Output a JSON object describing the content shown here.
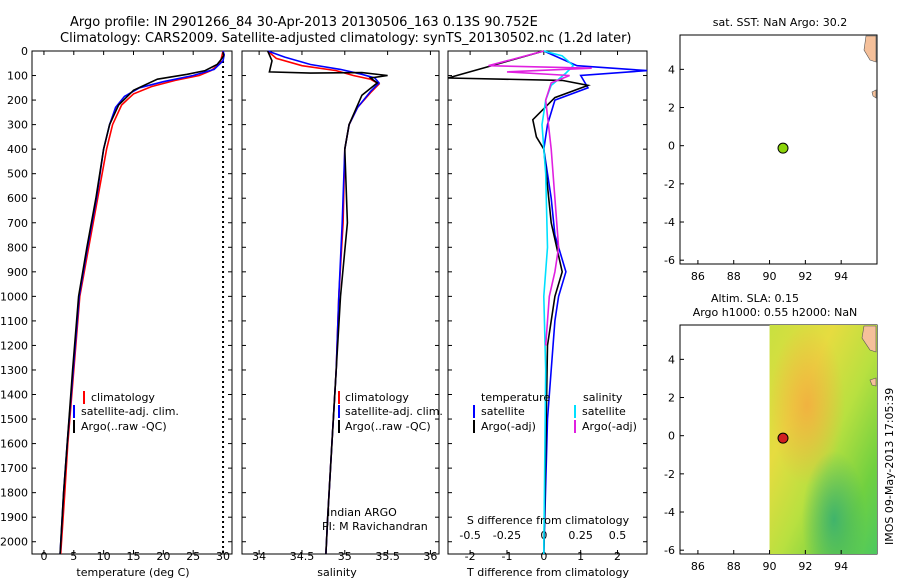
{
  "header": {
    "line1": "Argo profile: IN 2901266_84 30-Apr-2013 20130506_163 0.13S 90.752E",
    "line2": "Climatology: CARS2009. Satellite-adjusted climatology: synTS_20130502.nc (1.2d later)"
  },
  "colors": {
    "climatology": "#ff0000",
    "satellite": "#0000ff",
    "argo": "#000000",
    "sat_salinity": "#00e0ff",
    "argo_salinity": "#e020e0",
    "land": "#f5c09a",
    "point_sst": "#8bd40a",
    "point_sla": "#d02020"
  },
  "chart_data": [
    {
      "id": "temperature",
      "type": "line",
      "xlabel": "temperature (deg C)",
      "ylabel": "depth",
      "xlim": [
        -2,
        31.5
      ],
      "ylim": [
        2050,
        0
      ],
      "xticks": [
        "0",
        "5",
        "10",
        "15",
        "20",
        "25",
        "30"
      ],
      "xtick_values": [
        0,
        5,
        10,
        15,
        20,
        25,
        30
      ],
      "yticks": [
        "0",
        "100",
        "200",
        "300",
        "400",
        "500",
        "600",
        "700",
        "800",
        "900",
        "1000",
        "1100",
        "1200",
        "1300",
        "1400",
        "1500",
        "1600",
        "1700",
        "1800",
        "1900",
        "2000"
      ],
      "ytick_values": [
        0,
        100,
        200,
        300,
        400,
        500,
        600,
        700,
        800,
        900,
        1000,
        1100,
        1200,
        1300,
        1400,
        1500,
        1600,
        1700,
        1800,
        1900,
        2000
      ],
      "reference_line_x": 30,
      "legend": [
        "climatology",
        "satellite-adj. clim.",
        "Argo(..raw -QC)"
      ],
      "series": [
        {
          "name": "climatology",
          "x": [
            30,
            29.8,
            29.5,
            28,
            26,
            22,
            18,
            15,
            13,
            11.5,
            10.5,
            9,
            7.5,
            6,
            5,
            4,
            3.5,
            2.8
          ],
          "y": [
            0,
            20,
            50,
            80,
            100,
            120,
            145,
            175,
            220,
            300,
            400,
            600,
            800,
            1000,
            1300,
            1600,
            1800,
            2050
          ]
        },
        {
          "name": "satellite-adj. clim.",
          "x": [
            30,
            30.2,
            30,
            28.5,
            25,
            20,
            16,
            13.5,
            12,
            11,
            10,
            8.8,
            7.3,
            5.9,
            4.9,
            3.9,
            3.3,
            2.7
          ],
          "y": [
            0,
            15,
            40,
            75,
            100,
            125,
            150,
            185,
            230,
            300,
            400,
            600,
            800,
            1000,
            1300,
            1600,
            1800,
            2050
          ]
        },
        {
          "name": "Argo(..raw -QC)",
          "x": [
            30,
            30.1,
            29.5,
            29,
            27,
            24,
            19,
            15,
            12.5,
            11,
            10,
            8.7,
            7.2,
            5.8,
            4.8,
            3.9,
            3.3,
            2.7
          ],
          "y": [
            5,
            20,
            40,
            55,
            80,
            95,
            115,
            160,
            220,
            300,
            400,
            600,
            800,
            1000,
            1300,
            1600,
            1800,
            2050
          ]
        }
      ]
    },
    {
      "id": "salinity",
      "type": "line",
      "xlabel": "salinity",
      "xlim": [
        33.8,
        36.1
      ],
      "ylim": [
        2050,
        0
      ],
      "xticks": [
        "34",
        "34.5",
        "35",
        "35.5",
        "36"
      ],
      "xtick_values": [
        34,
        34.5,
        35,
        35.5,
        36
      ],
      "legend": [
        "climatology",
        "satellite-adj. clim.",
        "Argo(..raw -QC)"
      ],
      "annotation_lines": [
        "Indian ARGO",
        "PI: M Ravichandran"
      ],
      "series": [
        {
          "name": "climatology",
          "x": [
            34.1,
            34.2,
            34.5,
            34.9,
            35.1,
            35.3,
            35.4,
            35.3,
            35.15,
            35.05,
            35.0,
            34.98,
            34.93,
            34.9,
            34.85,
            34.8,
            34.78
          ],
          "y": [
            0,
            30,
            60,
            80,
            100,
            115,
            135,
            170,
            230,
            300,
            400,
            700,
            1000,
            1300,
            1600,
            1900,
            2050
          ]
        },
        {
          "name": "satellite-adj. clim.",
          "x": [
            34.1,
            34.3,
            34.6,
            34.95,
            35.2,
            35.35,
            35.4,
            35.3,
            35.15,
            35.05,
            35.0,
            34.97,
            34.93,
            34.9,
            34.85,
            34.8,
            34.78
          ],
          "y": [
            0,
            25,
            55,
            75,
            95,
            110,
            130,
            165,
            230,
            300,
            400,
            700,
            1000,
            1300,
            1600,
            1900,
            2050
          ]
        },
        {
          "name": "Argo(..raw -QC)",
          "x": [
            34.1,
            34.15,
            34.12,
            34.6,
            35.2,
            35.5,
            35.3,
            35.38,
            35.2,
            35.05,
            35.0,
            35.03,
            34.95,
            34.9,
            34.85,
            34.8,
            34.78
          ],
          "y": [
            0,
            40,
            85,
            90,
            88,
            100,
            110,
            130,
            180,
            300,
            400,
            700,
            1000,
            1300,
            1600,
            1900,
            2050
          ]
        }
      ]
    },
    {
      "id": "difference",
      "type": "line",
      "xlabel": "T difference from climatology",
      "x2label": "S difference from climatology",
      "xlim": [
        -2.6,
        2.8
      ],
      "ylim": [
        2050,
        0
      ],
      "xticks": [
        "-2",
        "-1",
        "0",
        "1",
        "2"
      ],
      "xtick_values": [
        -2,
        -1,
        0,
        1,
        2
      ],
      "x2ticks": [
        "-0.5",
        "-0.25",
        "0",
        "0.25",
        "0.5"
      ],
      "x2tick_values": [
        -2,
        -1,
        0,
        1,
        2
      ],
      "legend_titles": [
        "temperature",
        "salinity"
      ],
      "legend": [
        "satellite",
        "Argo(-adj)",
        "satellite",
        "Argo(-adj)"
      ],
      "series": [
        {
          "name": "T satellite",
          "x": [
            0,
            0.9,
            2.8,
            1.0,
            1.2,
            0.3,
            0.1,
            0,
            0.2,
            0.3,
            0.6,
            0.4,
            0.3,
            0.1,
            0
          ],
          "y": [
            0,
            60,
            80,
            100,
            150,
            200,
            300,
            400,
            600,
            750,
            900,
            1000,
            1100,
            1500,
            2050
          ]
        },
        {
          "name": "T Argo(-adj)",
          "x": [
            0,
            -2.6,
            0.5,
            1.2,
            0.3,
            -0.3,
            -0.2,
            0,
            0.1,
            0.2,
            0.5,
            0.3,
            0.1,
            0
          ],
          "y": [
            0,
            110,
            120,
            140,
            190,
            280,
            350,
            400,
            550,
            700,
            900,
            1000,
            1200,
            2050
          ]
        },
        {
          "name": "S satellite",
          "x": [
            0,
            0.5,
            0.8,
            0.6,
            0.2,
            0.05,
            -0.05,
            0.05,
            0.1,
            0,
            0.05,
            0
          ],
          "y": [
            0,
            20,
            60,
            90,
            140,
            200,
            300,
            500,
            800,
            1000,
            1300,
            2050
          ]
        },
        {
          "name": "S Argo(-adj)",
          "x": [
            0,
            -1.5,
            1.3,
            -1.0,
            0.7,
            0.2,
            0.05,
            0.2,
            0.3,
            0.4,
            0.3,
            0.15,
            0.1,
            0.05
          ],
          "y": [
            0,
            60,
            70,
            85,
            100,
            130,
            200,
            400,
            600,
            800,
            900,
            1000,
            1100,
            1200
          ]
        }
      ]
    },
    {
      "id": "sst_map",
      "type": "scatter",
      "title": "sat. SST: NaN Argo: 30.2",
      "xlim": [
        85,
        96
      ],
      "ylim": [
        -6.2,
        5.8
      ],
      "xticks": [
        "86",
        "88",
        "90",
        "92",
        "94"
      ],
      "xtick_values": [
        86,
        88,
        90,
        92,
        94
      ],
      "yticks": [
        "-6",
        "-4",
        "-2",
        "0",
        "2",
        "4"
      ],
      "ytick_values": [
        -6,
        -4,
        -2,
        0,
        2,
        4
      ],
      "points": [
        {
          "lon": 90.752,
          "lat": -0.13
        }
      ]
    },
    {
      "id": "sla_map",
      "type": "heatmap",
      "title_line1": "Altim. SLA: 0.15",
      "title_line2": "Argo h1000: 0.55 h2000: NaN",
      "xlim": [
        85,
        96
      ],
      "ylim": [
        -6.2,
        5.8
      ],
      "xticks": [
        "86",
        "88",
        "90",
        "92",
        "94"
      ],
      "xtick_values": [
        86,
        88,
        90,
        92,
        94
      ],
      "yticks": [
        "-6",
        "-4",
        "-2",
        "0",
        "2",
        "4"
      ],
      "ytick_values": [
        -6,
        -4,
        -2,
        0,
        2,
        4
      ],
      "field_lon_range": [
        90,
        96
      ],
      "points": [
        {
          "lon": 90.752,
          "lat": -0.13
        }
      ]
    }
  ],
  "footer": {
    "stamp": "IMOS 09-May-2013 17:05:39"
  }
}
